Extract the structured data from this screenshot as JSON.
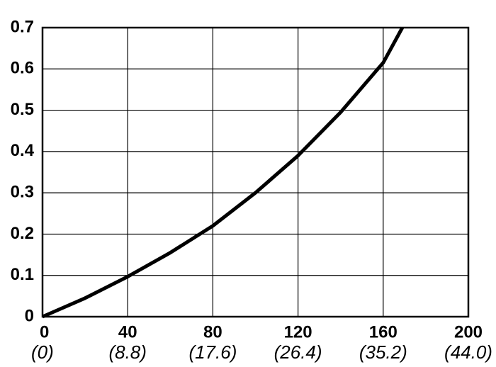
{
  "chart_data": {
    "type": "line",
    "x": [
      0,
      20,
      40,
      60,
      80,
      100,
      120,
      140,
      160,
      169
    ],
    "series": [
      {
        "color": "#000000",
        "values": [
          0,
          0.045,
          0.097,
          0.155,
          0.22,
          0.3,
          0.39,
          0.495,
          0.615,
          0.7
        ]
      }
    ],
    "xlim": [
      0,
      200
    ],
    "xticks": [
      0,
      40,
      80,
      120,
      160,
      200
    ],
    "xtick_sublabels": [
      "(0)",
      "(8.8)",
      "(17.6)",
      "(26.4)",
      "(35.2)",
      "(44.0)"
    ],
    "ylim": [
      0,
      0.7
    ],
    "yticks": [
      0,
      0.1,
      0.2,
      0.3,
      0.4,
      0.5,
      0.6,
      0.7
    ],
    "grid": true
  }
}
